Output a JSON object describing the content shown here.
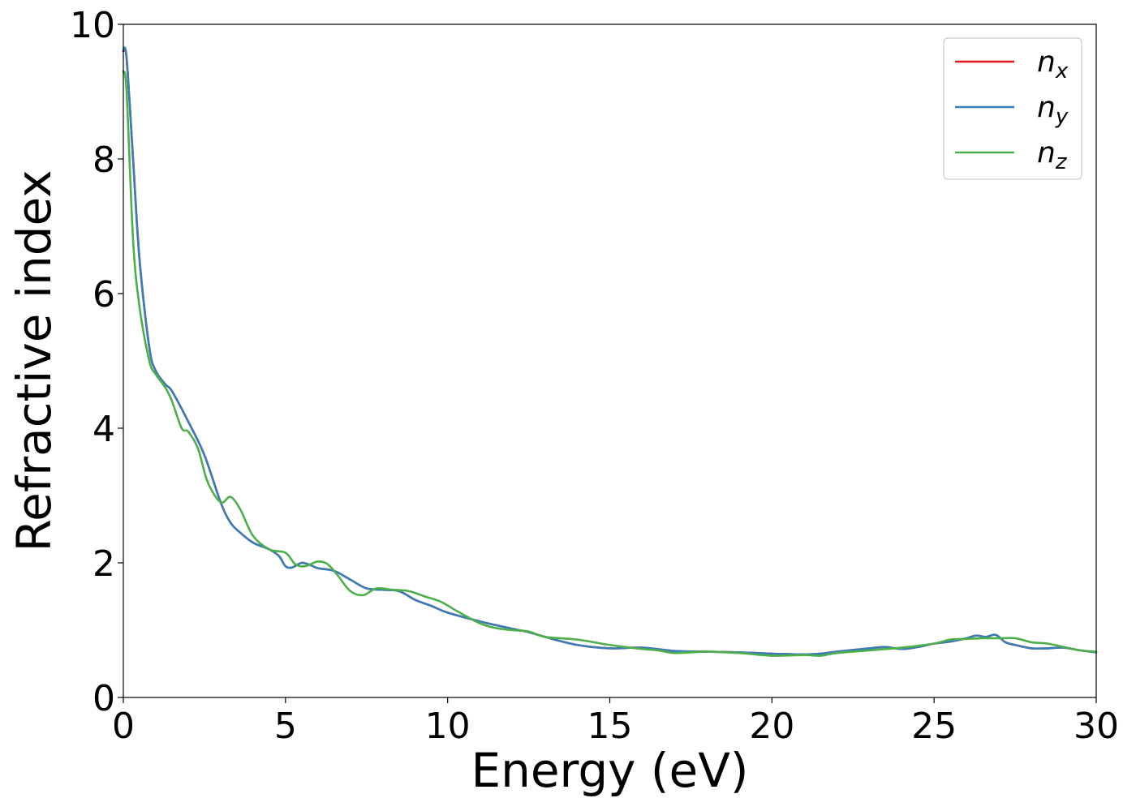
{
  "chart_data": {
    "type": "line",
    "xlabel": "Energy (eV)",
    "ylabel": "Refractive index",
    "xlim": [
      0,
      30
    ],
    "ylim": [
      0,
      10
    ],
    "x_ticks": [
      0,
      5,
      10,
      15,
      20,
      25,
      30
    ],
    "y_ticks": [
      0,
      2,
      4,
      6,
      8,
      10
    ],
    "grid": false,
    "legend_position": "top-right",
    "series": [
      {
        "name": "n_x",
        "legend_base": "n",
        "legend_sub": "x",
        "color": "#e41a1c",
        "x": [
          0,
          0.1,
          0.3,
          0.5,
          0.8,
          1.0,
          1.3,
          1.5,
          2.0,
          2.5,
          3.0,
          3.3,
          3.6,
          4.0,
          4.5,
          4.8,
          5.0,
          5.2,
          5.5,
          5.8,
          6.0,
          6.5,
          7.0,
          7.5,
          8.0,
          8.5,
          9.0,
          9.5,
          10.0,
          11.0,
          12.0,
          12.5,
          13.0,
          14.0,
          15.0,
          16.0,
          17.0,
          18.0,
          19.0,
          20.0,
          21.0,
          21.5,
          22.0,
          23.0,
          23.5,
          24.0,
          24.5,
          25.0,
          25.5,
          26.0,
          26.3,
          26.6,
          26.9,
          27.2,
          27.5,
          28.0,
          28.5,
          29.0,
          29.5,
          30.0
        ],
        "y": [
          9.6,
          9.5,
          8.0,
          6.5,
          5.2,
          4.85,
          4.65,
          4.55,
          4.1,
          3.6,
          2.9,
          2.6,
          2.45,
          2.3,
          2.2,
          2.1,
          1.95,
          1.93,
          2.0,
          1.96,
          1.92,
          1.88,
          1.75,
          1.62,
          1.6,
          1.58,
          1.45,
          1.36,
          1.26,
          1.13,
          1.02,
          0.97,
          0.9,
          0.78,
          0.73,
          0.74,
          0.69,
          0.68,
          0.67,
          0.65,
          0.64,
          0.65,
          0.68,
          0.73,
          0.75,
          0.72,
          0.75,
          0.8,
          0.83,
          0.88,
          0.92,
          0.9,
          0.93,
          0.82,
          0.78,
          0.73,
          0.73,
          0.74,
          0.7,
          0.67
        ]
      },
      {
        "name": "n_y",
        "legend_base": "n",
        "legend_sub": "y",
        "color": "#377eb8",
        "x": [
          0,
          0.1,
          0.3,
          0.5,
          0.8,
          1.0,
          1.3,
          1.5,
          2.0,
          2.5,
          3.0,
          3.3,
          3.6,
          4.0,
          4.5,
          4.8,
          5.0,
          5.2,
          5.5,
          5.8,
          6.0,
          6.5,
          7.0,
          7.5,
          8.0,
          8.5,
          9.0,
          9.5,
          10.0,
          11.0,
          12.0,
          12.5,
          13.0,
          14.0,
          15.0,
          16.0,
          17.0,
          18.0,
          19.0,
          20.0,
          21.0,
          21.5,
          22.0,
          23.0,
          23.5,
          24.0,
          24.5,
          25.0,
          25.5,
          26.0,
          26.3,
          26.6,
          26.9,
          27.2,
          27.5,
          28.0,
          28.5,
          29.0,
          29.5,
          30.0
        ],
        "y": [
          9.62,
          9.5,
          8.0,
          6.5,
          5.2,
          4.85,
          4.65,
          4.55,
          4.1,
          3.6,
          2.9,
          2.6,
          2.45,
          2.3,
          2.2,
          2.1,
          1.95,
          1.93,
          2.0,
          1.96,
          1.92,
          1.88,
          1.75,
          1.62,
          1.6,
          1.58,
          1.45,
          1.36,
          1.26,
          1.13,
          1.02,
          0.97,
          0.9,
          0.78,
          0.73,
          0.74,
          0.69,
          0.68,
          0.67,
          0.65,
          0.64,
          0.65,
          0.68,
          0.73,
          0.75,
          0.72,
          0.75,
          0.8,
          0.83,
          0.88,
          0.92,
          0.9,
          0.93,
          0.82,
          0.78,
          0.73,
          0.73,
          0.74,
          0.7,
          0.67
        ]
      },
      {
        "name": "n_z",
        "legend_base": "n",
        "legend_sub": "z",
        "color": "#4daf4a",
        "x": [
          0,
          0.1,
          0.3,
          0.5,
          0.8,
          1.0,
          1.3,
          1.5,
          1.8,
          2.0,
          2.3,
          2.6,
          3.0,
          3.3,
          3.6,
          4.0,
          4.5,
          5.0,
          5.3,
          5.6,
          6.0,
          6.3,
          6.6,
          7.0,
          7.4,
          7.8,
          8.3,
          8.8,
          9.3,
          9.8,
          10.3,
          11.0,
          11.5,
          12.0,
          12.5,
          13.0,
          14.0,
          15.0,
          16.0,
          16.5,
          17.0,
          18.0,
          19.0,
          20.0,
          21.0,
          21.5,
          22.0,
          23.0,
          24.0,
          25.0,
          25.5,
          26.0,
          26.5,
          27.0,
          27.5,
          28.0,
          28.5,
          29.0,
          29.5,
          30.0
        ],
        "y": [
          9.3,
          9.0,
          6.8,
          5.8,
          5.0,
          4.8,
          4.6,
          4.4,
          4.0,
          3.95,
          3.7,
          3.2,
          2.9,
          2.98,
          2.8,
          2.4,
          2.2,
          2.15,
          1.98,
          1.95,
          2.02,
          1.98,
          1.82,
          1.58,
          1.52,
          1.62,
          1.6,
          1.58,
          1.5,
          1.42,
          1.28,
          1.1,
          1.03,
          1.0,
          0.98,
          0.9,
          0.86,
          0.78,
          0.72,
          0.7,
          0.66,
          0.68,
          0.66,
          0.62,
          0.63,
          0.62,
          0.66,
          0.7,
          0.74,
          0.8,
          0.86,
          0.87,
          0.88,
          0.88,
          0.88,
          0.82,
          0.8,
          0.75,
          0.7,
          0.68
        ]
      }
    ]
  }
}
